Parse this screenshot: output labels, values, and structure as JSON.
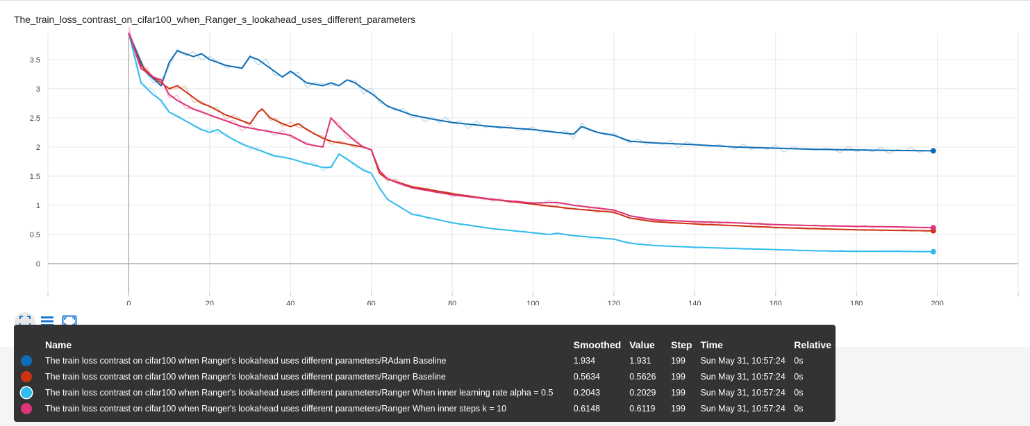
{
  "title": "The_train_loss_contrast_on_cifar100_when_Ranger_s_lookahead_uses_different_parameters",
  "chart_data": {
    "type": "line",
    "xlim": [
      -20,
      220
    ],
    "ylim": [
      -0.5,
      3.95
    ],
    "x_ticks": [
      0,
      20,
      40,
      60,
      80,
      100,
      120,
      140,
      160,
      180,
      200
    ],
    "y_ticks": [
      0,
      0.5,
      1,
      1.5,
      2,
      2.5,
      3,
      3.5
    ],
    "x_tick_labels": [
      "0",
      "20",
      "40",
      "60",
      "80",
      "100",
      "120",
      "140",
      "160",
      "180",
      "200"
    ],
    "y_tick_labels": [
      "0",
      "0.5",
      "1",
      "1.5",
      "2",
      "2.5",
      "3",
      "3.5"
    ],
    "grid": true,
    "series": [
      {
        "name": "The train loss contrast on cifar100 when Ranger's lookahead uses different parameters/RAdam Baseline",
        "color": "#0d6eb5",
        "raw_color": "#c3dbee",
        "x": [
          0,
          4,
          8,
          10,
          12,
          14,
          16,
          18,
          20,
          24,
          28,
          30,
          32,
          34,
          36,
          38,
          40,
          44,
          48,
          50,
          52,
          54,
          56,
          58,
          60,
          64,
          70,
          75,
          80,
          90,
          100,
          106,
          110,
          112,
          116,
          120,
          124,
          130,
          140,
          150,
          160,
          170,
          180,
          190,
          199
        ],
        "values": [
          3.95,
          3.3,
          3.05,
          3.45,
          3.65,
          3.6,
          3.55,
          3.6,
          3.5,
          3.4,
          3.35,
          3.55,
          3.5,
          3.4,
          3.3,
          3.2,
          3.3,
          3.1,
          3.05,
          3.1,
          3.05,
          3.15,
          3.1,
          3.0,
          2.92,
          2.7,
          2.55,
          2.48,
          2.42,
          2.35,
          2.3,
          2.25,
          2.22,
          2.35,
          2.25,
          2.2,
          2.1,
          2.07,
          2.04,
          2.0,
          1.98,
          1.96,
          1.95,
          1.94,
          1.934
        ],
        "final_raw": 1.931
      },
      {
        "name": "The train loss contrast on cifar100 when Ranger's lookahead uses different parameters/Ranger Baseline",
        "color": "#cc3311",
        "raw_color": "#f0c2b8",
        "x": [
          0,
          3,
          6,
          8,
          10,
          12,
          14,
          16,
          18,
          20,
          24,
          28,
          30,
          32,
          33,
          35,
          38,
          40,
          42,
          44,
          48,
          50,
          54,
          58,
          60,
          62,
          64,
          70,
          80,
          90,
          100,
          110,
          120,
          124,
          130,
          140,
          150,
          160,
          170,
          180,
          190,
          199
        ],
        "values": [
          3.95,
          3.4,
          3.2,
          3.1,
          3.0,
          3.05,
          2.95,
          2.85,
          2.75,
          2.7,
          2.55,
          2.45,
          2.4,
          2.6,
          2.65,
          2.5,
          2.4,
          2.35,
          2.4,
          2.3,
          2.15,
          2.1,
          2.05,
          2.0,
          1.95,
          1.55,
          1.45,
          1.32,
          1.2,
          1.1,
          1.02,
          0.94,
          0.88,
          0.78,
          0.72,
          0.68,
          0.65,
          0.62,
          0.6,
          0.58,
          0.57,
          0.5634
        ],
        "final_raw": 0.5626
      },
      {
        "name": "The train loss contrast on cifar100 when Ranger's lookahead uses different parameters/Ranger When inner learning rate alpha = 0.5",
        "color": "#33bbee",
        "raw_color": "#c6ebf9",
        "x": [
          0,
          3,
          6,
          8,
          10,
          14,
          18,
          20,
          22,
          24,
          28,
          32,
          36,
          40,
          44,
          48,
          50,
          52,
          56,
          58,
          60,
          62,
          64,
          70,
          80,
          90,
          100,
          104,
          106,
          110,
          120,
          124,
          130,
          140,
          150,
          160,
          170,
          180,
          190,
          199
        ],
        "values": [
          3.95,
          3.1,
          2.9,
          2.8,
          2.6,
          2.45,
          2.3,
          2.25,
          2.3,
          2.2,
          2.05,
          1.95,
          1.85,
          1.8,
          1.72,
          1.65,
          1.65,
          1.88,
          1.7,
          1.6,
          1.55,
          1.3,
          1.1,
          0.85,
          0.7,
          0.6,
          0.53,
          0.5,
          0.52,
          0.48,
          0.42,
          0.35,
          0.31,
          0.28,
          0.26,
          0.24,
          0.22,
          0.21,
          0.21,
          0.2043
        ],
        "final_raw": 0.2029
      },
      {
        "name": "The train loss contrast on cifar100 when Ranger's lookahead uses different parameters/Ranger When inner steps k = 10",
        "color": "#dd3377",
        "raw_color": "#f6c1d6",
        "x": [
          0,
          3,
          6,
          8,
          10,
          12,
          16,
          20,
          24,
          28,
          32,
          36,
          40,
          44,
          48,
          50,
          52,
          56,
          58,
          60,
          62,
          64,
          70,
          80,
          90,
          100,
          106,
          110,
          120,
          124,
          130,
          140,
          150,
          160,
          170,
          180,
          190,
          199
        ],
        "values": [
          3.95,
          3.35,
          3.2,
          3.15,
          2.9,
          2.8,
          2.65,
          2.55,
          2.45,
          2.35,
          2.3,
          2.25,
          2.2,
          2.05,
          2.0,
          2.5,
          2.35,
          2.1,
          2.0,
          1.95,
          1.6,
          1.45,
          1.3,
          1.18,
          1.1,
          1.04,
          1.05,
          1.0,
          0.92,
          0.82,
          0.75,
          0.72,
          0.7,
          0.67,
          0.65,
          0.64,
          0.63,
          0.6148
        ],
        "final_raw": 0.6119
      }
    ]
  },
  "tooltip": {
    "headers": [
      "Name",
      "Smoothed",
      "Value",
      "Step",
      "Time",
      "Relative"
    ],
    "rows": [
      {
        "color": "#0d6eb5",
        "name": "The train loss contrast on cifar100 when Ranger's lookahead uses different parameters/RAdam Baseline",
        "smoothed": "1.934",
        "value": "1.931",
        "step": "199",
        "time": "Sun May 31, 10:57:24",
        "relative": "0s"
      },
      {
        "color": "#cc3311",
        "name": "The train loss contrast on cifar100 when Ranger's lookahead uses different parameters/Ranger Baseline",
        "smoothed": "0.5634",
        "value": "0.5626",
        "step": "199",
        "time": "Sun May 31, 10:57:24",
        "relative": "0s"
      },
      {
        "color": "#33bbee",
        "name": "The train loss contrast on cifar100 when Ranger's lookahead uses different parameters/Ranger When inner learning rate alpha = 0.5",
        "smoothed": "0.2043",
        "value": "0.2029",
        "step": "199",
        "time": "Sun May 31, 10:57:24",
        "relative": "0s"
      },
      {
        "color": "#dd3377",
        "name": "The train loss contrast on cifar100 when Ranger's lookahead uses different parameters/Ranger When inner steps k = 10",
        "smoothed": "0.6148",
        "value": "0.6119",
        "step": "199",
        "time": "Sun May 31, 10:57:24",
        "relative": "0s"
      }
    ]
  },
  "toolbar": {
    "icons": [
      "fit-domain-icon",
      "toggle-log-icon",
      "expand-icon"
    ]
  }
}
